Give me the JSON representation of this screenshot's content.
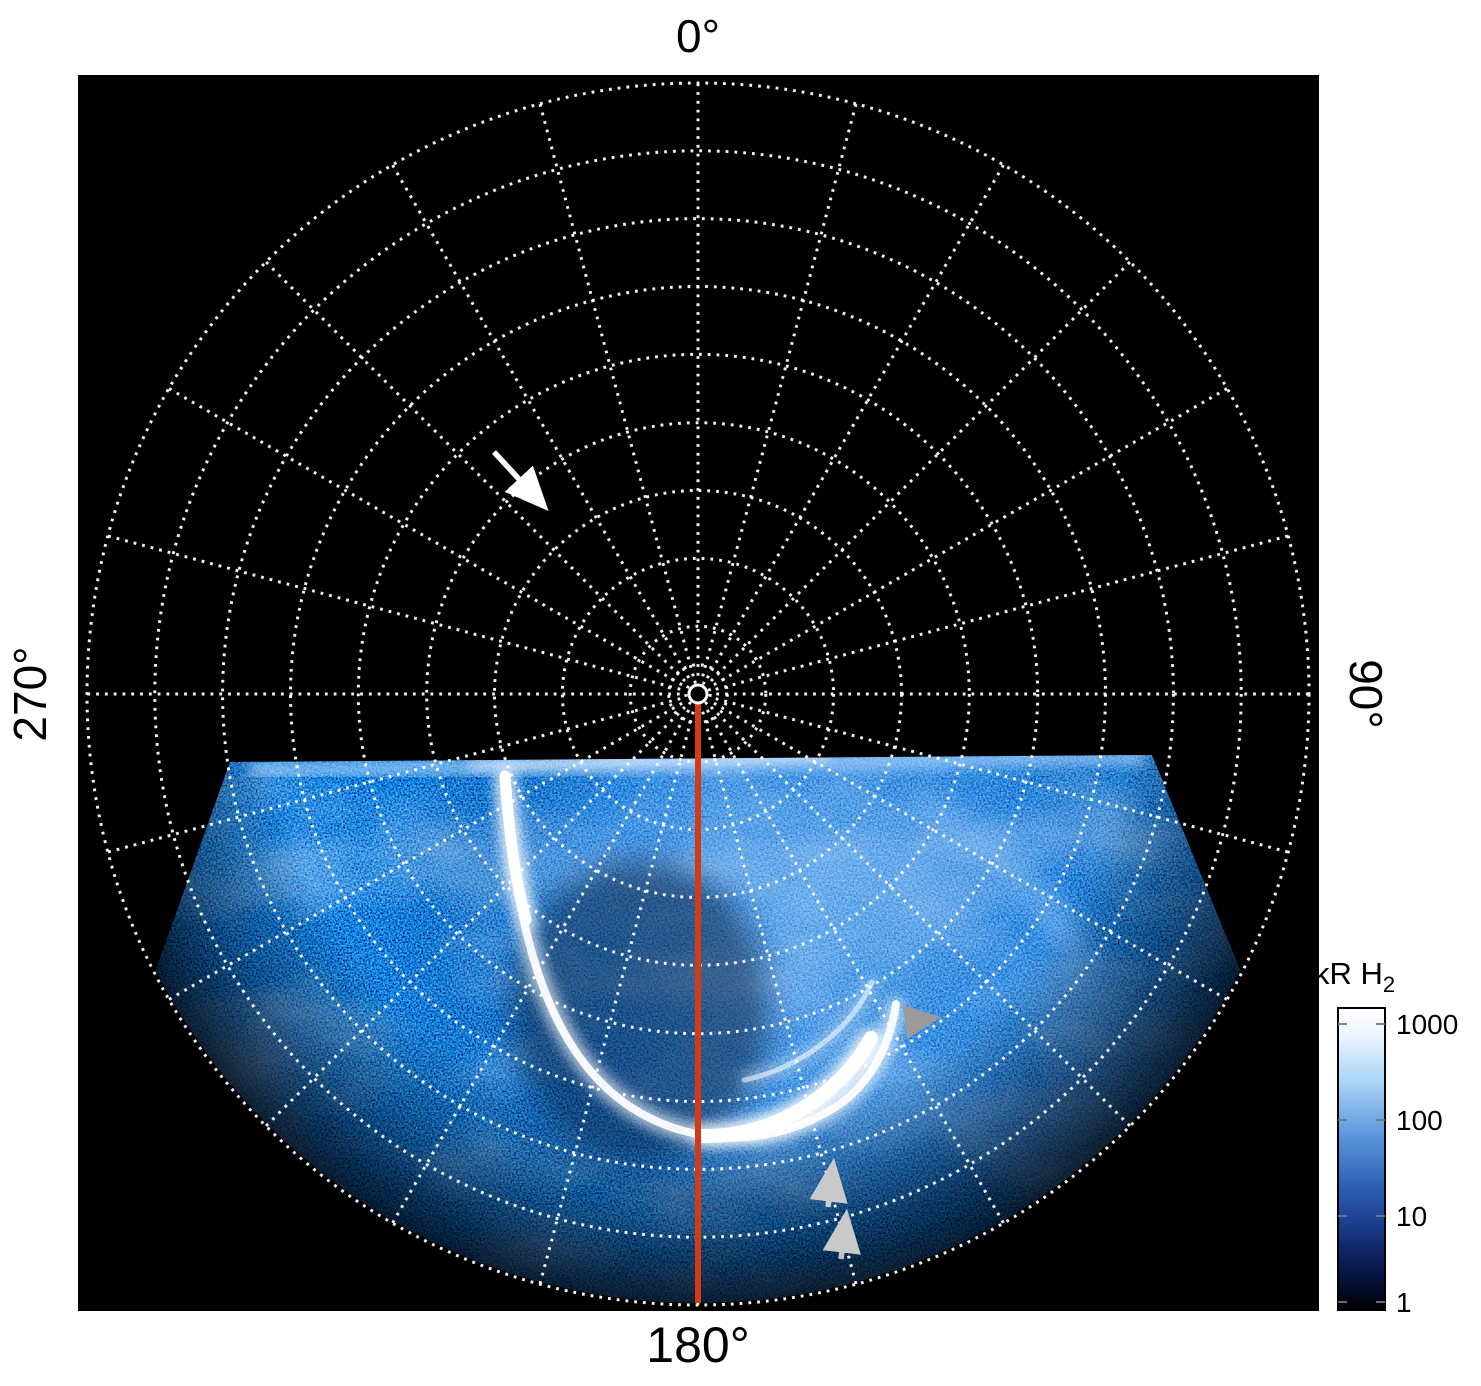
{
  "figure": {
    "description": "Polar projection map of planetary auroral H2 emission with white dotted polar grid on black background",
    "angle_labels": {
      "top": "0°",
      "right": "90°",
      "bottom": "180°",
      "left": "270°"
    }
  },
  "colorbar": {
    "title_main": "kR H",
    "title_sub": "2",
    "ticks": [
      "1000",
      "100",
      "10",
      "1"
    ]
  },
  "colors": {
    "page_background": "#ffffff",
    "plot_background": "#000000",
    "grid": "#ffffff",
    "meridian_line": "#d23b15",
    "arrow_white": "#ffffff",
    "arrowhead_gray": "#9a9a9a",
    "arrow_light_gray": "#c9c9c9"
  },
  "chart_data": {
    "type": "heatmap",
    "projection": "polar",
    "title": "",
    "angular_tick_labels": [
      "0°",
      "90°",
      "180°",
      "270°"
    ],
    "angular_layout": "0° at top, 90° at right (label rotated), 180° at bottom, 270° at left (label rotated)",
    "grid": {
      "style": "white dotted rings and radial spokes on black",
      "spoke_step_deg": 15,
      "ring_radii_fraction": [
        0.02,
        0.048,
        0.111,
        0.222,
        0.333,
        0.444,
        0.556,
        0.667,
        0.778,
        0.889,
        1.0
      ],
      "spoke_inner_fraction": 0.03
    },
    "colorbar": {
      "label": "kR H2",
      "scale": "log",
      "min": 1,
      "max": 1000,
      "tick_values": [
        1000,
        100,
        10,
        1
      ],
      "colormap": "black - dark blue - blue - light blue - white (low to high)"
    },
    "content": {
      "upper_half": "No emission (black) in the upper half of the polar map",
      "emission_region": "Speckled blue auroral emission fills the lower sector, roughly azimuths 100°-260°, bounded above by a nearly horizontal bright jagged edge through the pole region",
      "main_feature": "Bright white horseshoe-shaped auroral arc in the lower middle, brightest along its lower-right segment near the 150°-210° azimuth range",
      "secondary_features": "Diffuse brighter patches inside the oval and along the dawn-side (right) emission edge",
      "meridian_line": "Solid red-orange line drawn along the 180° meridian from the central pole to the outer boundary of the map"
    },
    "annotations": [
      {
        "kind": "arrow",
        "color": "white",
        "points": "down-right",
        "location": "upper-left quadrant over the black region"
      },
      {
        "kind": "solid arrowhead",
        "color": "gray",
        "points": "right",
        "location": "just right of the bright arc segment"
      },
      {
        "kind": "arrow",
        "color": "light gray",
        "points": "up",
        "location": "below the arc, upper of two stacked arrows"
      },
      {
        "kind": "arrow",
        "color": "light gray",
        "points": "up",
        "location": "below the arc, lower of two stacked arrows"
      }
    ]
  }
}
